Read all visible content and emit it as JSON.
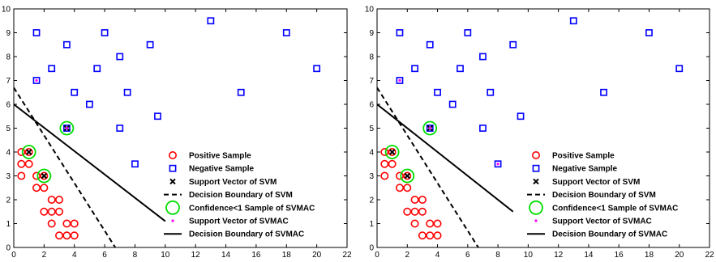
{
  "chart_data": [
    {
      "type": "scatter",
      "xlim": [
        0,
        22
      ],
      "ylim": [
        0,
        10
      ],
      "xticks": [
        "0",
        "2",
        "4",
        "6",
        "8",
        "10",
        "12",
        "14",
        "16",
        "18",
        "20",
        "22"
      ],
      "yticks": [
        "0",
        "1",
        "2",
        "3",
        "4",
        "5",
        "6",
        "7",
        "8",
        "9",
        "10"
      ],
      "grid": false,
      "legend_position": "bottom-right",
      "legend": [
        {
          "label": "Positive Sample",
          "marker": "red-circle"
        },
        {
          "label": "Negative Sample",
          "marker": "blue-square"
        },
        {
          "label": "Support Vector of SVM",
          "marker": "black-x"
        },
        {
          "label": "Decision Boundary of SVM",
          "marker": "dashed-line"
        },
        {
          "label": "Confidence<1 Sample of SVMAC",
          "marker": "green-circle"
        },
        {
          "label": "Support Vector of SVMAC",
          "marker": "magenta-dot"
        },
        {
          "label": "Decision Boundary of SVMAC",
          "marker": "solid-line"
        }
      ],
      "series": [
        {
          "name": "Positive Sample",
          "color": "#ff0000",
          "points": [
            [
              0.5,
              4
            ],
            [
              1,
              4
            ],
            [
              0.5,
              3.5
            ],
            [
              1,
              3.5
            ],
            [
              0.5,
              3
            ],
            [
              1.5,
              3
            ],
            [
              2,
              3
            ],
            [
              1.5,
              2.5
            ],
            [
              2,
              2.5
            ],
            [
              2.5,
              2
            ],
            [
              3,
              2
            ],
            [
              2,
              1.5
            ],
            [
              2.5,
              1.5
            ],
            [
              3,
              1.5
            ],
            [
              2.5,
              1
            ],
            [
              3.5,
              1
            ],
            [
              4,
              1
            ],
            [
              3,
              0.5
            ],
            [
              3.5,
              0.5
            ],
            [
              4,
              0.5
            ]
          ]
        },
        {
          "name": "Negative Sample",
          "color": "#0000ff",
          "points": [
            [
              1.5,
              9
            ],
            [
              3.5,
              8.5
            ],
            [
              6,
              9
            ],
            [
              2.5,
              7.5
            ],
            [
              5.5,
              7.5
            ],
            [
              7,
              8
            ],
            [
              9,
              8.5
            ],
            [
              13,
              9.5
            ],
            [
              18,
              9
            ],
            [
              20,
              7.5
            ],
            [
              1.5,
              7
            ],
            [
              4,
              6.5
            ],
            [
              7.5,
              6.5
            ],
            [
              5,
              6
            ],
            [
              9.5,
              5.5
            ],
            [
              15,
              6.5
            ],
            [
              3.5,
              5
            ],
            [
              7,
              5
            ],
            [
              8,
              3.5
            ]
          ]
        },
        {
          "name": "Support Vector of SVM",
          "color": "#000000",
          "points": [
            [
              1,
              4
            ],
            [
              2,
              3
            ],
            [
              3.5,
              5
            ]
          ]
        },
        {
          "name": "Confidence<1 Sample of SVMAC",
          "color": "#00dd00",
          "points": [
            [
              1,
              4
            ],
            [
              2,
              3
            ],
            [
              3.5,
              5
            ]
          ]
        },
        {
          "name": "Support Vector of SVMAC",
          "color": "#ff00ff",
          "points": [
            [
              1.5,
              7
            ],
            [
              3.5,
              5
            ]
          ]
        },
        {
          "name": "Decision Boundary of SVM",
          "style": "dashed",
          "line": [
            [
              0,
              6.7
            ],
            [
              6.7,
              0
            ]
          ]
        },
        {
          "name": "Decision Boundary of SVMAC",
          "style": "solid",
          "line": [
            [
              0,
              6
            ],
            [
              10,
              1.1
            ]
          ]
        }
      ]
    },
    {
      "type": "scatter",
      "xlim": [
        0,
        22
      ],
      "ylim": [
        0,
        10
      ],
      "xticks": [
        "0",
        "2",
        "4",
        "6",
        "8",
        "10",
        "12",
        "14",
        "16",
        "18",
        "20",
        "22"
      ],
      "yticks": [
        "0",
        "1",
        "2",
        "3",
        "4",
        "5",
        "6",
        "7",
        "8",
        "9",
        "10"
      ],
      "grid": false,
      "legend_position": "bottom-right",
      "legend": [
        {
          "label": "Positive Sample",
          "marker": "red-circle"
        },
        {
          "label": "Negative Sample",
          "marker": "blue-square"
        },
        {
          "label": "Support Vector of SVM",
          "marker": "black-x"
        },
        {
          "label": "Decision Boundary of SVM",
          "marker": "dashed-line"
        },
        {
          "label": "Confidence<1 Sample of SVMAC",
          "marker": "green-circle"
        },
        {
          "label": "Support Vector of SVMAC",
          "marker": "magenta-dot"
        },
        {
          "label": "Decision Boundary of SVMAC",
          "marker": "solid-line"
        }
      ],
      "series": [
        {
          "name": "Positive Sample",
          "color": "#ff0000",
          "points": [
            [
              0.5,
              4
            ],
            [
              1,
              4
            ],
            [
              0.5,
              3.5
            ],
            [
              1,
              3.5
            ],
            [
              0.5,
              3
            ],
            [
              1.5,
              3
            ],
            [
              2,
              3
            ],
            [
              1.5,
              2.5
            ],
            [
              2,
              2.5
            ],
            [
              2.5,
              2
            ],
            [
              3,
              2
            ],
            [
              2,
              1.5
            ],
            [
              2.5,
              1.5
            ],
            [
              3,
              1.5
            ],
            [
              2.5,
              1
            ],
            [
              3.5,
              1
            ],
            [
              4,
              1
            ],
            [
              3,
              0.5
            ],
            [
              3.5,
              0.5
            ],
            [
              4,
              0.5
            ]
          ]
        },
        {
          "name": "Negative Sample",
          "color": "#0000ff",
          "points": [
            [
              1.5,
              9
            ],
            [
              3.5,
              8.5
            ],
            [
              6,
              9
            ],
            [
              2.5,
              7.5
            ],
            [
              5.5,
              7.5
            ],
            [
              7,
              8
            ],
            [
              9,
              8.5
            ],
            [
              13,
              9.5
            ],
            [
              18,
              9
            ],
            [
              20,
              7.5
            ],
            [
              1.5,
              7
            ],
            [
              4,
              6.5
            ],
            [
              7.5,
              6.5
            ],
            [
              5,
              6
            ],
            [
              9.5,
              5.5
            ],
            [
              15,
              6.5
            ],
            [
              3.5,
              5
            ],
            [
              7,
              5
            ],
            [
              8,
              3.5
            ]
          ]
        },
        {
          "name": "Support Vector of SVM",
          "color": "#000000",
          "points": [
            [
              1,
              4
            ],
            [
              2,
              3
            ],
            [
              3.5,
              5
            ]
          ]
        },
        {
          "name": "Confidence<1 Sample of SVMAC",
          "color": "#00dd00",
          "points": [
            [
              1,
              4
            ],
            [
              2,
              3
            ],
            [
              3.5,
              5
            ]
          ]
        },
        {
          "name": "Support Vector of SVMAC",
          "color": "#ff00ff",
          "points": [
            [
              1.5,
              7
            ],
            [
              3.5,
              5
            ],
            [
              8,
              3.5
            ]
          ]
        },
        {
          "name": "Decision Boundary of SVM",
          "style": "dashed",
          "line": [
            [
              0,
              6.7
            ],
            [
              6.7,
              0
            ]
          ]
        },
        {
          "name": "Decision Boundary of SVMAC",
          "style": "solid",
          "line": [
            [
              0,
              6
            ],
            [
              9,
              1.5
            ]
          ]
        }
      ]
    }
  ]
}
